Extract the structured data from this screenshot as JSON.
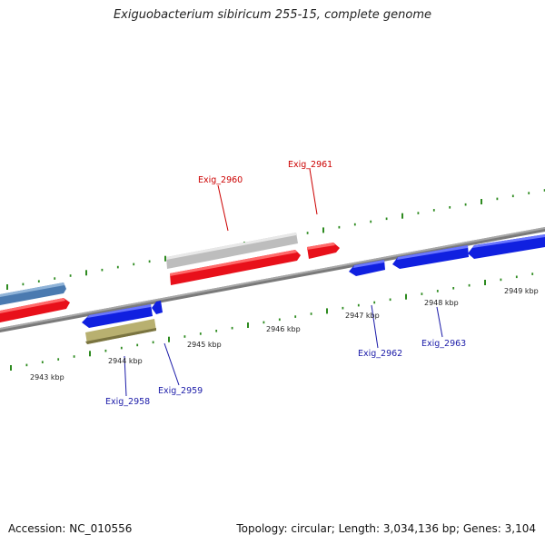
{
  "title": "Exiguobacterium sibiricum 255-15, complete genome",
  "footer": {
    "accession": "Accession: NC_010556",
    "summary": "Topology: circular; Length: 3,034,136 bp; Genes: 3,104"
  },
  "colors": {
    "backbone": "#808080",
    "tick": "#2e8b20",
    "red_gene": "#e8101a",
    "blue_gene": "#1020e0",
    "steel_gene": "#4a7ab0",
    "gray_gene": "#c0c0c0",
    "olive_gene": "#b8b070",
    "label_red": "#cc0000",
    "label_blue": "#1a1aa8"
  },
  "kbp_labels": [
    {
      "kbp": 2943,
      "text": "2943 kbp"
    },
    {
      "kbp": 2944,
      "text": "2944 kbp"
    },
    {
      "kbp": 2945,
      "text": "2945 kbp"
    },
    {
      "kbp": 2946,
      "text": "2946 kbp"
    },
    {
      "kbp": 2947,
      "text": "2947 kbp"
    },
    {
      "kbp": 2948,
      "text": "2948 kbp"
    },
    {
      "kbp": 2949,
      "text": "2949 kbp"
    }
  ],
  "gene_labels": [
    {
      "name": "Exig_2960",
      "color": "label_red"
    },
    {
      "name": "Exig_2961",
      "color": "label_red"
    },
    {
      "name": "Exig_2962",
      "color": "label_blue"
    },
    {
      "name": "Exig_2963",
      "color": "label_blue"
    },
    {
      "name": "Exig_2958",
      "color": "label_blue"
    },
    {
      "name": "Exig_2959",
      "color": "label_blue"
    }
  ]
}
